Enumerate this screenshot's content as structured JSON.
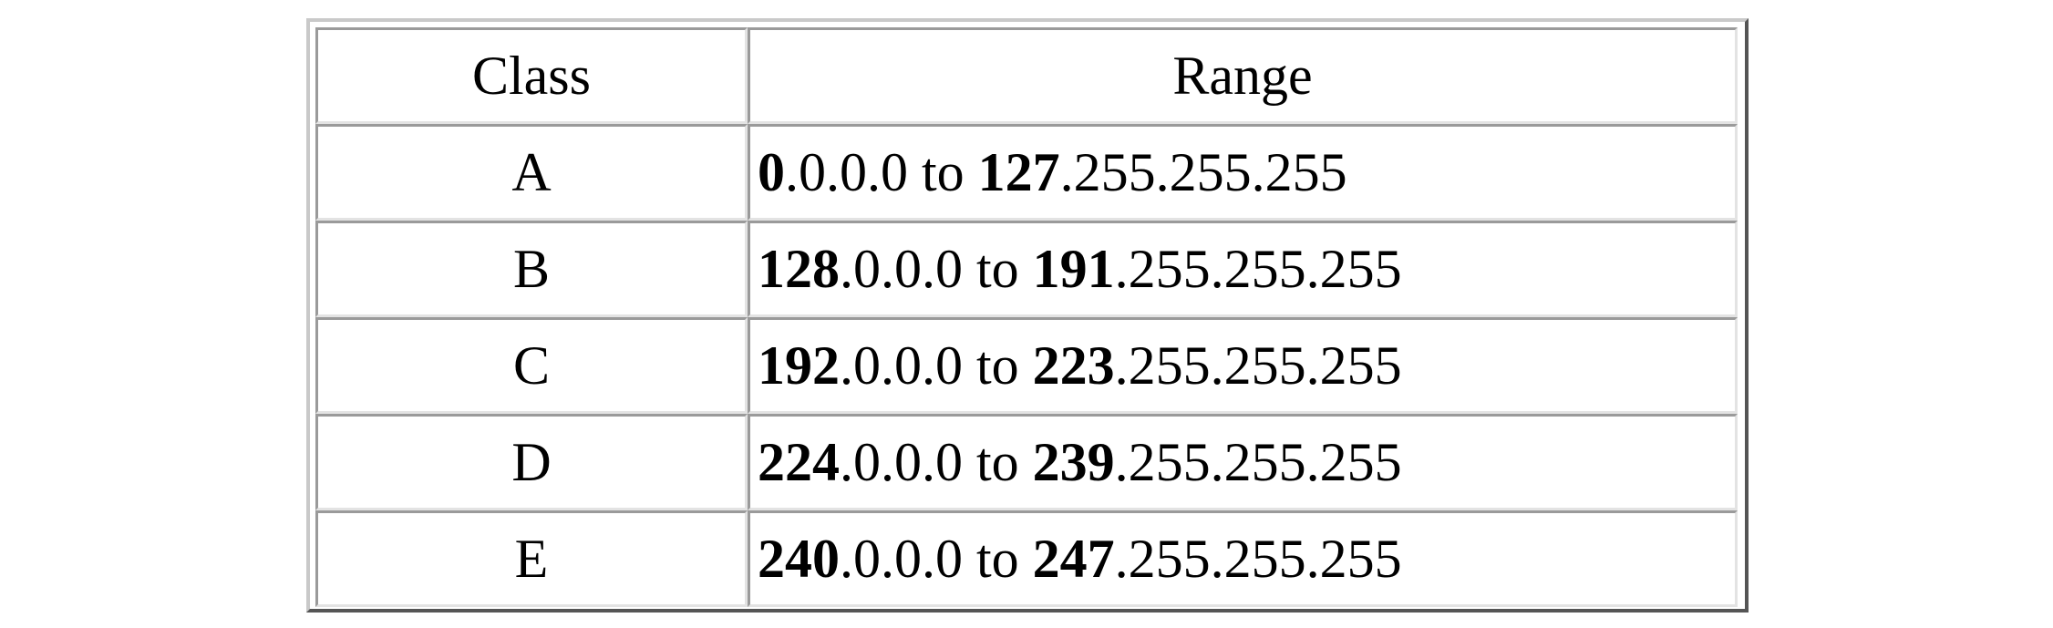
{
  "table": {
    "headers": {
      "class": "Class",
      "range": "Range"
    },
    "rows": [
      {
        "class": "A",
        "start_bold": "0",
        "start_rest": ".0.0.0",
        "connector": " to ",
        "end_bold": "127",
        "end_rest": ".255.255.255"
      },
      {
        "class": "B",
        "start_bold": "128",
        "start_rest": ".0.0.0",
        "connector": " to ",
        "end_bold": "191",
        "end_rest": ".255.255.255"
      },
      {
        "class": "C",
        "start_bold": "192",
        "start_rest": ".0.0.0",
        "connector": " to ",
        "end_bold": "223",
        "end_rest": ".255.255.255"
      },
      {
        "class": "D",
        "start_bold": "224",
        "start_rest": ".0.0.0",
        "connector": " to ",
        "end_bold": "239",
        "end_rest": ".255.255.255"
      },
      {
        "class": "E",
        "start_bold": "240",
        "start_rest": ".0.0.0",
        "connector": " to ",
        "end_bold": "247",
        "end_rest": ".255.255.255"
      }
    ]
  }
}
